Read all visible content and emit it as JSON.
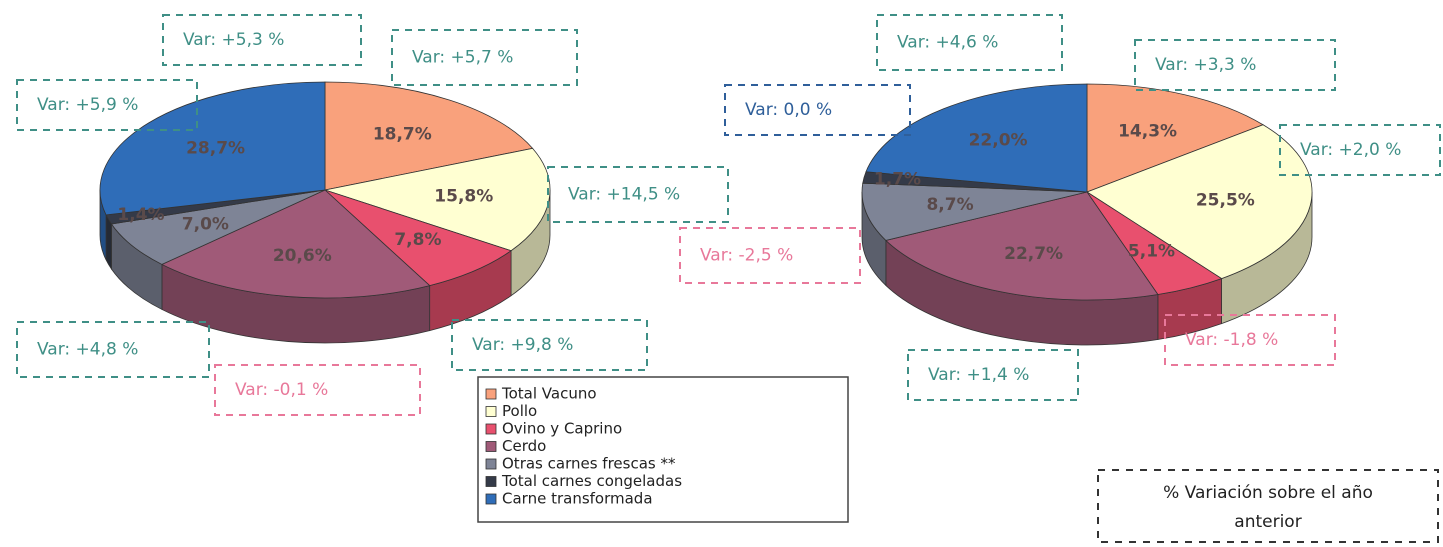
{
  "chart_data": [
    {
      "type": "pie",
      "categories": [
        "Total Vacuno",
        "Pollo",
        "Ovino y Caprino",
        "Cerdo",
        "Otras carnes frescas **",
        "Total carnes congeladas",
        "Carne transformada"
      ],
      "values": [
        18.7,
        15.8,
        7.8,
        20.6,
        7.0,
        1.4,
        28.7
      ],
      "value_labels": [
        "18,7%",
        "15,8%",
        "7,8%",
        "20,6%",
        "7,0%",
        "1,4%",
        "28,7%"
      ],
      "colors": [
        "#f9a17c",
        "#ffffd2",
        "#e8506e",
        "#a05a78",
        "#7e8496",
        "#343a48",
        "#2f6db8"
      ],
      "annotations": [
        "Var: +5,7 %",
        "Var: +14,5 %",
        "Var: +9,8 %",
        "Var: -0,1 %",
        "Var: +4,8 %",
        "Var: +5,9 %",
        "Var: +5,3 %"
      ],
      "annotation_colors": [
        "#3f8f86",
        "#3f8f86",
        "#3f8f86",
        "#e8789a",
        "#3f8f86",
        "#3f8f86",
        "#3f8f86"
      ]
    },
    {
      "type": "pie",
      "categories": [
        "Total Vacuno",
        "Pollo",
        "Ovino y Caprino",
        "Cerdo",
        "Otras carnes frescas **",
        "Total carnes congeladas",
        "Carne transformada"
      ],
      "values": [
        14.3,
        25.5,
        5.1,
        22.7,
        8.7,
        1.7,
        22.0
      ],
      "value_labels": [
        "14,3%",
        "25,5%",
        "5,1%",
        "22,7%",
        "8,7%",
        "1,7%",
        "22,0%"
      ],
      "colors": [
        "#f9a17c",
        "#ffffd2",
        "#e8506e",
        "#a05a78",
        "#7e8496",
        "#343a48",
        "#2f6db8"
      ],
      "annotations": [
        "Var: +3,3 %",
        "Var: +2,0 %",
        "Var: -1,8 %",
        "Var: +1,4 %",
        "Var: -2,5 %",
        "Var: 0,0 %",
        "Var: +4,6 %"
      ],
      "annotation_colors": [
        "#3f8f86",
        "#3f8f86",
        "#e8789a",
        "#3f8f86",
        "#e8789a",
        "#2f5f9a",
        "#3f8f86"
      ]
    }
  ],
  "note": "% Variación sobre el año anterior"
}
